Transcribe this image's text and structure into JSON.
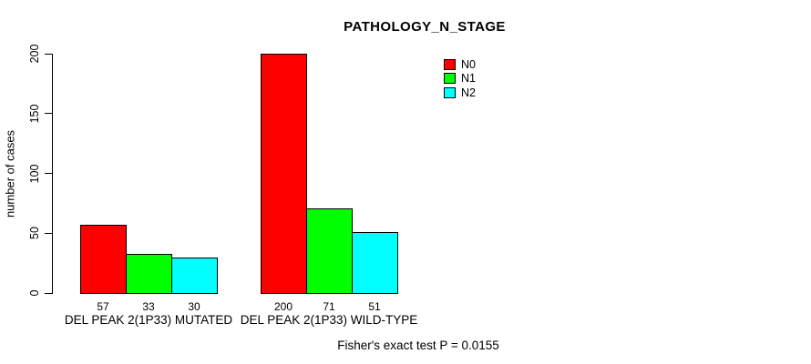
{
  "chart_data": {
    "type": "bar",
    "title": "PATHOLOGY_N_STAGE",
    "xlabel": "",
    "ylabel": "number of cases",
    "ylim": [
      0,
      200
    ],
    "yticks": [
      0,
      50,
      100,
      150,
      200
    ],
    "grid": false,
    "legend_position": "top-right",
    "categories": [
      "DEL PEAK 2(1P33) MUTATED",
      "DEL PEAK 2(1P33) WILD-TYPE"
    ],
    "series": [
      {
        "name": "N0",
        "color": "#FF0000",
        "values": [
          57,
          200
        ]
      },
      {
        "name": "N1",
        "color": "#00FF00",
        "values": [
          33,
          71
        ]
      },
      {
        "name": "N2",
        "color": "#00FFFF",
        "values": [
          30,
          51
        ]
      }
    ],
    "bar_labels": [
      [
        57,
        33,
        30
      ],
      [
        200,
        71,
        51
      ]
    ],
    "annotation": "Fisher's exact test P = 0.0155"
  }
}
